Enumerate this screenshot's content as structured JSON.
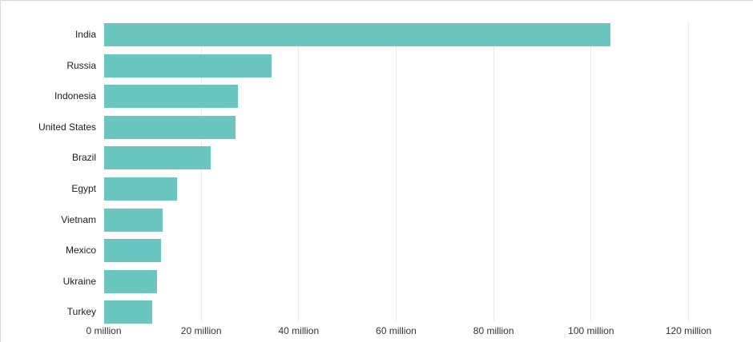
{
  "chart_data": {
    "type": "bar",
    "orientation": "horizontal",
    "title": "",
    "categories": [
      "India",
      "Russia",
      "Indonesia",
      "United States",
      "Brazil",
      "Egypt",
      "Vietnam",
      "Mexico",
      "Ukraine",
      "Turkey"
    ],
    "values": [
      104,
      34.5,
      27.5,
      27,
      22,
      15,
      12,
      11.8,
      10.9,
      10
    ],
    "value_unit": "million",
    "xlim": [
      0,
      120
    ],
    "x_ticks": [
      0,
      20,
      40,
      60,
      80,
      100,
      120
    ],
    "x_tick_labels": [
      "0 million",
      "20 million",
      "40 million",
      "60 million",
      "80 million",
      "100 million",
      "120 million"
    ],
    "ylabel": "",
    "xlabel": "",
    "grid": "vertical",
    "legend": "none",
    "bar_color": "#6bc6c2"
  },
  "colors": {
    "background": "#ffffff",
    "bar": "#6bc6c2",
    "gridline": "#ebebeb",
    "frame_border": "#d6d6dc",
    "category_label": "#1d1d1d",
    "tick_label": "#333333"
  }
}
